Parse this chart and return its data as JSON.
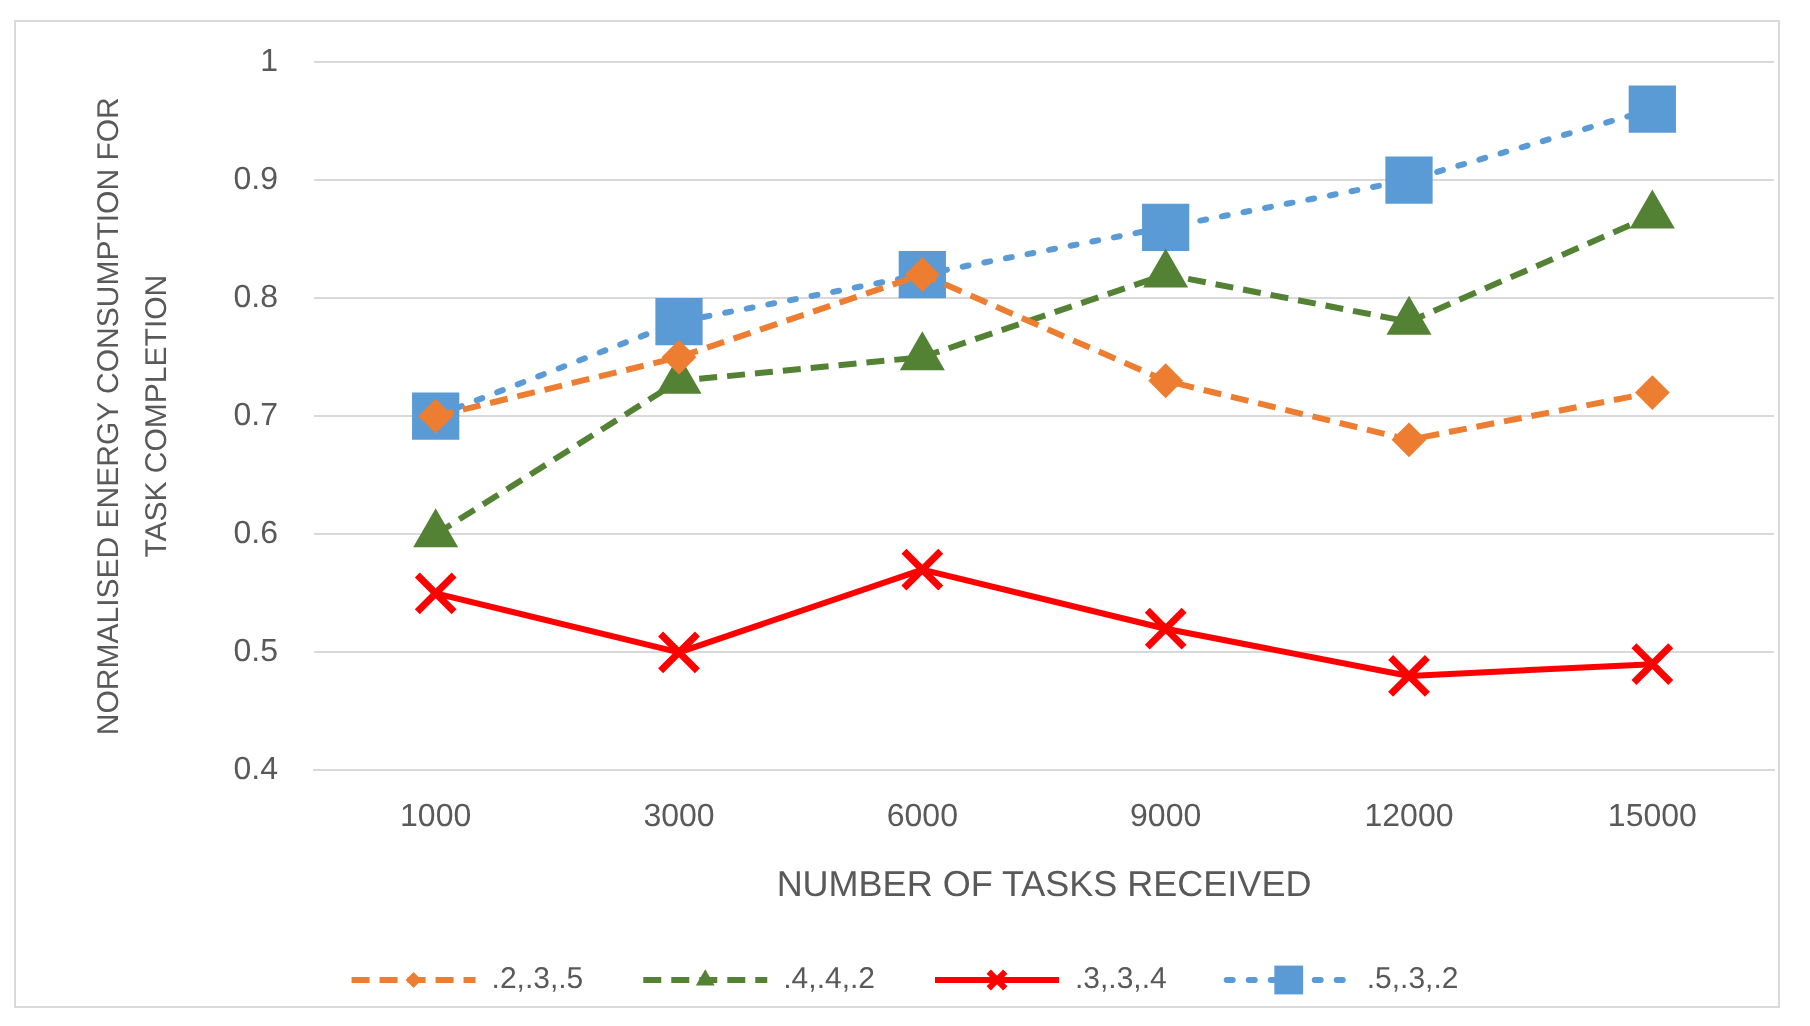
{
  "chart_data": {
    "type": "line",
    "xlabel": "NUMBER OF TASKS RECEIVED",
    "ylabel": "NORMALISED ENERGY CONSUMPTION FOR TASK COMPLETION",
    "categories": [
      "1000",
      "3000",
      "6000",
      "9000",
      "12000",
      "15000"
    ],
    "series": [
      {
        "name": ".2,.3,.5",
        "color": "#ed7d31",
        "values": [
          0.7,
          0.75,
          0.82,
          0.73,
          0.68,
          0.72
        ],
        "marker": "diamond",
        "line_style": "dashed"
      },
      {
        "name": ".4,.4,.2",
        "color": "#548235",
        "values": [
          0.6,
          0.73,
          0.75,
          0.82,
          0.78,
          0.87
        ],
        "marker": "triangle",
        "line_style": "dashed"
      },
      {
        "name": ".3,.3,.4",
        "color": "#ff0000",
        "values": [
          0.55,
          0.5,
          0.57,
          0.52,
          0.48,
          0.49
        ],
        "marker": "cross",
        "line_style": "solid"
      },
      {
        "name": ".5,.3,.2",
        "color": "#5b9bd5",
        "values": [
          0.7,
          0.78,
          0.82,
          0.86,
          0.9,
          0.96
        ],
        "marker": "square",
        "line_style": "dotted"
      }
    ],
    "ylim": [
      0.4,
      1
    ],
    "yticks": [
      0.4,
      0.5,
      0.6,
      0.7,
      0.8,
      0.9,
      1
    ],
    "grid": "y",
    "legend": "bottom"
  }
}
